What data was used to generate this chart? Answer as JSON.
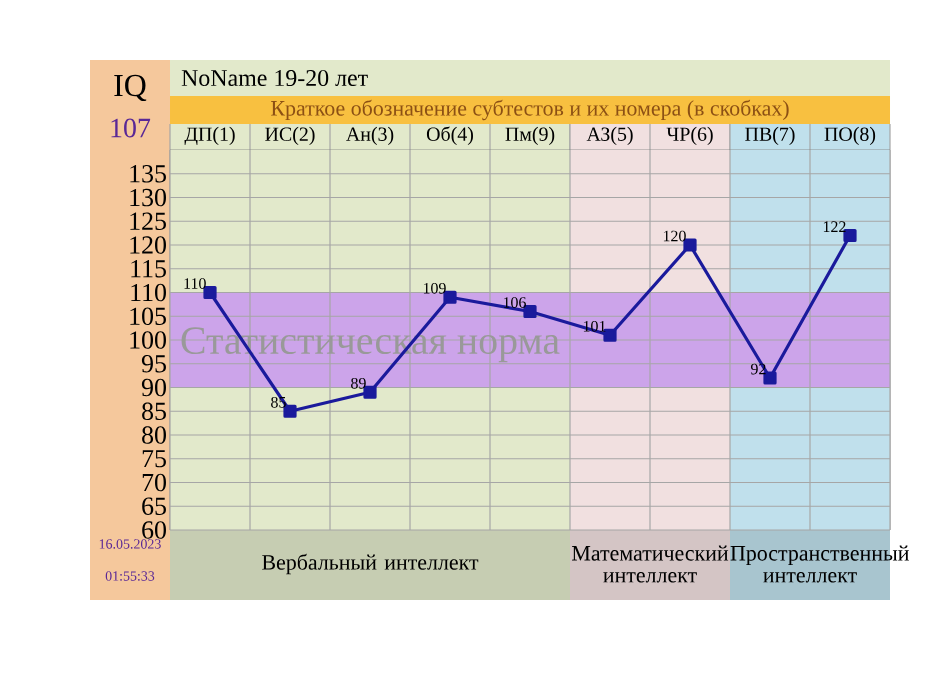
{
  "chart_data": {
    "type": "line",
    "title": "NoName 19-20 лет",
    "subtitle": "Краткое обозначение субтестов и их номера (в скобках)",
    "categories": [
      "ДП(1)",
      "ИС(2)",
      "Ан(3)",
      "Об(4)",
      "Пм(9)",
      "АЗ(5)",
      "ЧР(6)",
      "ПВ(7)",
      "ПО(8)"
    ],
    "series": [
      {
        "color": "#1a1a9c",
        "values": [
          110,
          85,
          89,
          109,
          106,
          101,
          120,
          92,
          122
        ]
      }
    ],
    "ylim": [
      60,
      140
    ],
    "yticks": [
      60,
      65,
      70,
      75,
      80,
      85,
      90,
      95,
      100,
      105,
      110,
      115,
      120,
      125,
      130,
      135
    ],
    "grid": true,
    "marker": "square",
    "data_labels": true,
    "bands": [
      {
        "axis": "x",
        "from": "ДП(1)",
        "to": "Пм(9)",
        "label": "Вербальный интеллект",
        "color": "#e2e9cb"
      },
      {
        "axis": "x",
        "from": "АЗ(5)",
        "to": "ЧР(6)",
        "label": "Математический интеллект",
        "color": "#f1e0e0"
      },
      {
        "axis": "x",
        "from": "ПВ(7)",
        "to": "ПО(8)",
        "label": "Пространственный интеллект",
        "color": "#c0e0ec"
      },
      {
        "axis": "y",
        "from": 90,
        "to": 110,
        "label": "Статистическая норма",
        "color": "#cca4ea"
      }
    ],
    "annotations": [
      "IQ",
      "107",
      "16.05.2023",
      "01:55:33"
    ]
  }
}
